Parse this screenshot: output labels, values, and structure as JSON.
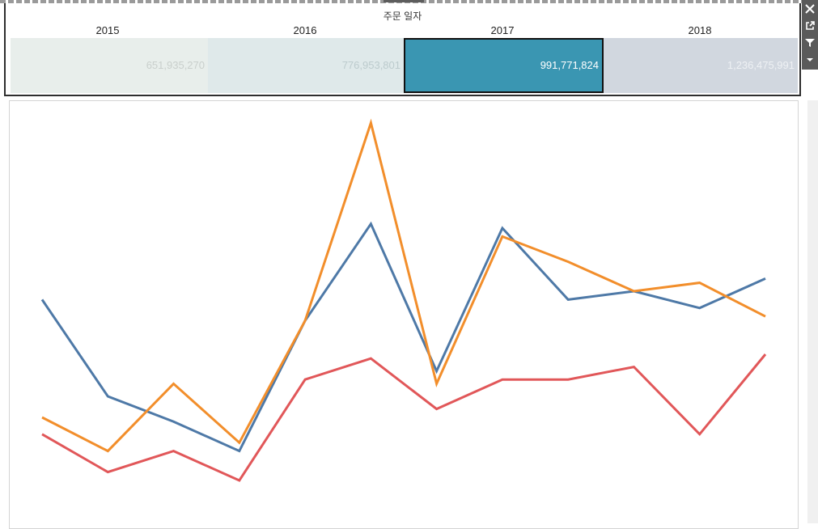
{
  "year_filter": {
    "title": "주문 일자",
    "years": [
      {
        "label": "2015",
        "value": "651,935,270",
        "bg": "#e8eeeb",
        "fg": "#c9cfcc"
      },
      {
        "label": "2016",
        "value": "776,953,801",
        "bg": "#dfe9ea",
        "fg": "#bccbcd"
      },
      {
        "label": "2017",
        "value": "991,771,824",
        "bg": "#3a96b2",
        "fg": "#ffffff",
        "selected": true
      },
      {
        "label": "2018",
        "value": "1,236,475,991",
        "bg": "#d1d7df",
        "fg": "#eef1f4"
      }
    ]
  },
  "toolbar": {
    "icons": [
      "close-icon",
      "popout-icon",
      "filter-icon",
      "dropdown-icon"
    ]
  },
  "chart_data": {
    "type": "line",
    "x": [
      1,
      2,
      3,
      4,
      5,
      6,
      7,
      8,
      9,
      10,
      11,
      12
    ],
    "grid": false,
    "legend": "none",
    "series": [
      {
        "color": "#4e79a7",
        "values": [
          68,
          45,
          39,
          32,
          63,
          86,
          51,
          85,
          68,
          70,
          66,
          73
        ]
      },
      {
        "color": "#f28e2b",
        "values": [
          40,
          32,
          48,
          34,
          63,
          110,
          48,
          83,
          77,
          70,
          72,
          64
        ]
      },
      {
        "color": "#e15759",
        "values": [
          36,
          27,
          32,
          25,
          49,
          54,
          42,
          49,
          49,
          52,
          36,
          55
        ]
      }
    ]
  }
}
